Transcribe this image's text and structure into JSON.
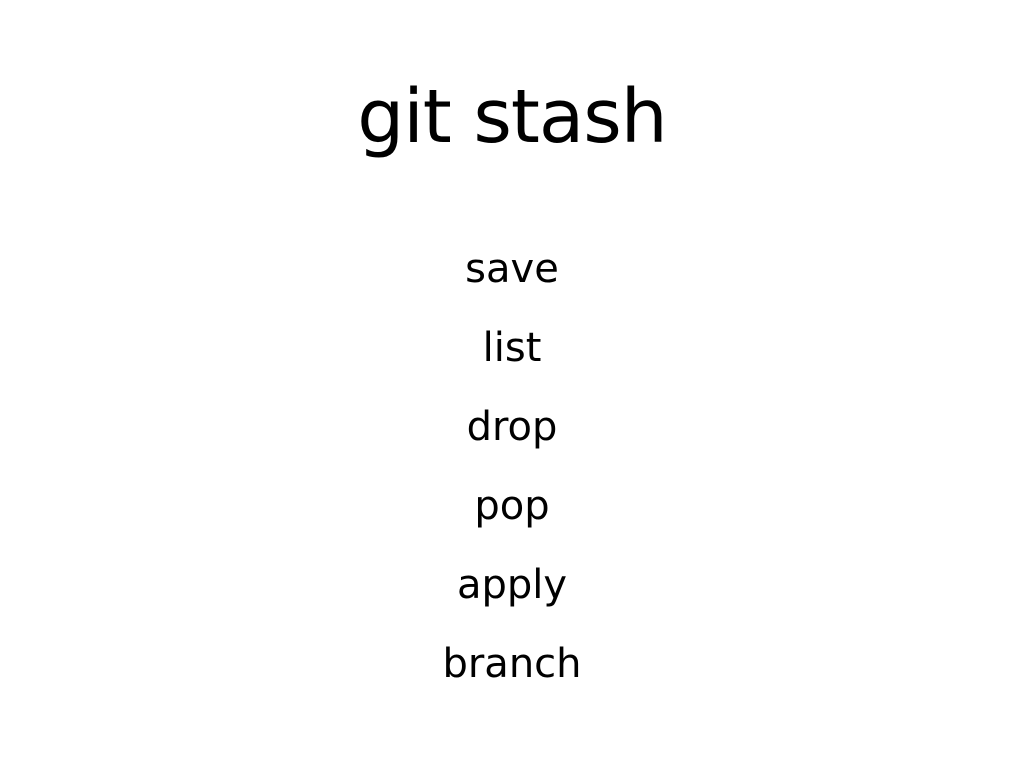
{
  "slide": {
    "title": "git stash",
    "items": [
      "save",
      "list",
      "drop",
      "pop",
      "apply",
      "branch"
    ]
  }
}
